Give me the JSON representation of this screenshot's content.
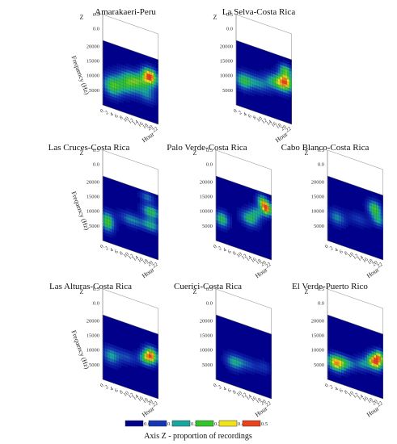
{
  "chart_data": {
    "type": "heatmap",
    "colormap": {
      "stops": [
        {
          "z": 0.0,
          "color": "#00008b"
        },
        {
          "z": 0.1,
          "color": "#1436b4"
        },
        {
          "z": 0.2,
          "color": "#1aa6a0"
        },
        {
          "z": 0.3,
          "color": "#35c52a"
        },
        {
          "z": 0.4,
          "color": "#f2e21a"
        },
        {
          "z": 0.5,
          "color": "#e8431a"
        }
      ]
    },
    "legend": {
      "ticks": [
        "0.0",
        "0.1",
        "0.2",
        "0.3",
        "0.4",
        "0.5"
      ],
      "colors": [
        "#00008b",
        "#1436b4",
        "#1aa6a0",
        "#35c52a",
        "#f2e21a",
        "#e8431a"
      ],
      "title": "Axis Z - proportion of recordings"
    },
    "axes": {
      "x_label": "Hour",
      "x_ticks": [
        "0",
        "2",
        "4",
        "6",
        "8",
        "10",
        "12",
        "14",
        "16",
        "18",
        "20",
        "22"
      ],
      "y_label": "Frequency (Hz)",
      "y_ticks": [
        "5000",
        "10000",
        "15000",
        "20000"
      ],
      "z_label": "Z",
      "z_ticks": [
        "0.0",
        "0.5"
      ],
      "xlim": [
        0,
        23
      ],
      "ylim": [
        0,
        22000
      ],
      "zlim": [
        0,
        0.5
      ]
    },
    "panels": [
      {
        "title": "Amarakaeri-Peru",
        "show_y_label": true,
        "show_y_ticks": true,
        "blobs": [
          {
            "h": 19.5,
            "f": 15500,
            "sh": 2.2,
            "sf": 1800,
            "z": 0.48
          },
          {
            "h": 14.5,
            "f": 12500,
            "sh": 4.5,
            "sf": 2000,
            "z": 0.28
          },
          {
            "h": 4.0,
            "f": 7500,
            "sh": 2.8,
            "sf": 2400,
            "z": 0.28
          },
          {
            "h": 10.0,
            "f": 9500,
            "sh": 3.5,
            "sf": 2200,
            "z": 0.22
          },
          {
            "h": 18.5,
            "f": 8500,
            "sh": 2.5,
            "sf": 1800,
            "z": 0.14
          }
        ]
      },
      {
        "title": "La Selva-Costa Rica",
        "show_y_label": false,
        "show_y_ticks": true,
        "blobs": [
          {
            "h": 20.5,
            "f": 14000,
            "sh": 2.2,
            "sf": 2200,
            "z": 0.42
          },
          {
            "h": 16.5,
            "f": 12500,
            "sh": 3.0,
            "sf": 1800,
            "z": 0.26
          },
          {
            "h": 3.0,
            "f": 9000,
            "sh": 2.5,
            "sf": 2000,
            "z": 0.25
          },
          {
            "h": 9.0,
            "f": 10000,
            "sh": 3.5,
            "sf": 1800,
            "z": 0.18
          },
          {
            "h": 20.5,
            "f": 18000,
            "sh": 1.8,
            "sf": 1200,
            "z": 0.22
          }
        ]
      },
      {
        "title": "Las Cruces-Costa Rica",
        "show_y_label": true,
        "show_y_ticks": true,
        "blobs": [
          {
            "h": 2.0,
            "f": 7000,
            "sh": 2.0,
            "sf": 2200,
            "z": 0.32
          },
          {
            "h": 20.0,
            "f": 15500,
            "sh": 2.5,
            "sf": 1500,
            "z": 0.28
          },
          {
            "h": 20.0,
            "f": 11000,
            "sh": 2.5,
            "sf": 1500,
            "z": 0.22
          },
          {
            "h": 12.0,
            "f": 10500,
            "sh": 3.5,
            "sf": 1500,
            "z": 0.18
          },
          {
            "h": 18.5,
            "f": 20000,
            "sh": 2.0,
            "sf": 1200,
            "z": 0.16
          }
        ]
      },
      {
        "title": "Palo Verde-Costa Rica",
        "show_y_label": false,
        "show_y_ticks": true,
        "blobs": [
          {
            "h": 21.0,
            "f": 17000,
            "sh": 1.6,
            "sf": 1600,
            "z": 0.48
          },
          {
            "h": 19.0,
            "f": 19000,
            "sh": 1.5,
            "sf": 1500,
            "z": 0.25
          },
          {
            "h": 2.5,
            "f": 8000,
            "sh": 2.0,
            "sf": 1800,
            "z": 0.28
          },
          {
            "h": 14.0,
            "f": 11500,
            "sh": 2.5,
            "sf": 1800,
            "z": 0.26
          },
          {
            "h": 17.0,
            "f": 14500,
            "sh": 2.0,
            "sf": 1500,
            "z": 0.18
          }
        ]
      },
      {
        "title": "Cabo Blanco-Costa Rica",
        "show_y_label": false,
        "show_y_ticks": true,
        "blobs": [
          {
            "h": 19.5,
            "f": 16500,
            "sh": 2.0,
            "sf": 1800,
            "z": 0.3
          },
          {
            "h": 21.0,
            "f": 13000,
            "sh": 1.8,
            "sf": 1500,
            "z": 0.2
          },
          {
            "h": 4.0,
            "f": 9000,
            "sh": 2.5,
            "sf": 1800,
            "z": 0.18
          },
          {
            "h": 13.0,
            "f": 11000,
            "sh": 3.0,
            "sf": 1500,
            "z": 0.1
          }
        ]
      },
      {
        "title": "Las Alturas-Costa Rica",
        "show_y_label": true,
        "show_y_ticks": true,
        "blobs": [
          {
            "h": 20.0,
            "f": 14000,
            "sh": 2.0,
            "sf": 1800,
            "z": 0.45
          },
          {
            "h": 17.5,
            "f": 12000,
            "sh": 2.0,
            "sf": 1500,
            "z": 0.22
          },
          {
            "h": 3.5,
            "f": 9000,
            "sh": 2.5,
            "sf": 2000,
            "z": 0.2
          },
          {
            "h": 10.0,
            "f": 10500,
            "sh": 3.0,
            "sf": 1500,
            "z": 0.12
          }
        ]
      },
      {
        "title": "Cuerici-Costa Rica",
        "show_y_label": false,
        "show_y_ticks": true,
        "blobs": [
          {
            "h": 7.5,
            "f": 8000,
            "sh": 2.5,
            "sf": 1800,
            "z": 0.2
          },
          {
            "h": 13.0,
            "f": 9000,
            "sh": 3.5,
            "sf": 1500,
            "z": 0.12
          },
          {
            "h": 20.0,
            "f": 10000,
            "sh": 2.0,
            "sf": 1500,
            "z": 0.08
          }
        ]
      },
      {
        "title": "El Verde-Puerto Rico",
        "show_y_label": false,
        "show_y_ticks": true,
        "blobs": [
          {
            "h": 19.5,
            "f": 11500,
            "sh": 2.2,
            "sf": 1800,
            "z": 0.48
          },
          {
            "h": 3.5,
            "f": 6500,
            "sh": 2.5,
            "sf": 1800,
            "z": 0.42
          },
          {
            "h": 21.5,
            "f": 14000,
            "sh": 1.6,
            "sf": 1500,
            "z": 0.32
          },
          {
            "h": 8.0,
            "f": 8000,
            "sh": 3.0,
            "sf": 1500,
            "z": 0.2
          },
          {
            "h": 14.5,
            "f": 9500,
            "sh": 2.0,
            "sf": 1500,
            "z": 0.16
          }
        ]
      }
    ]
  }
}
